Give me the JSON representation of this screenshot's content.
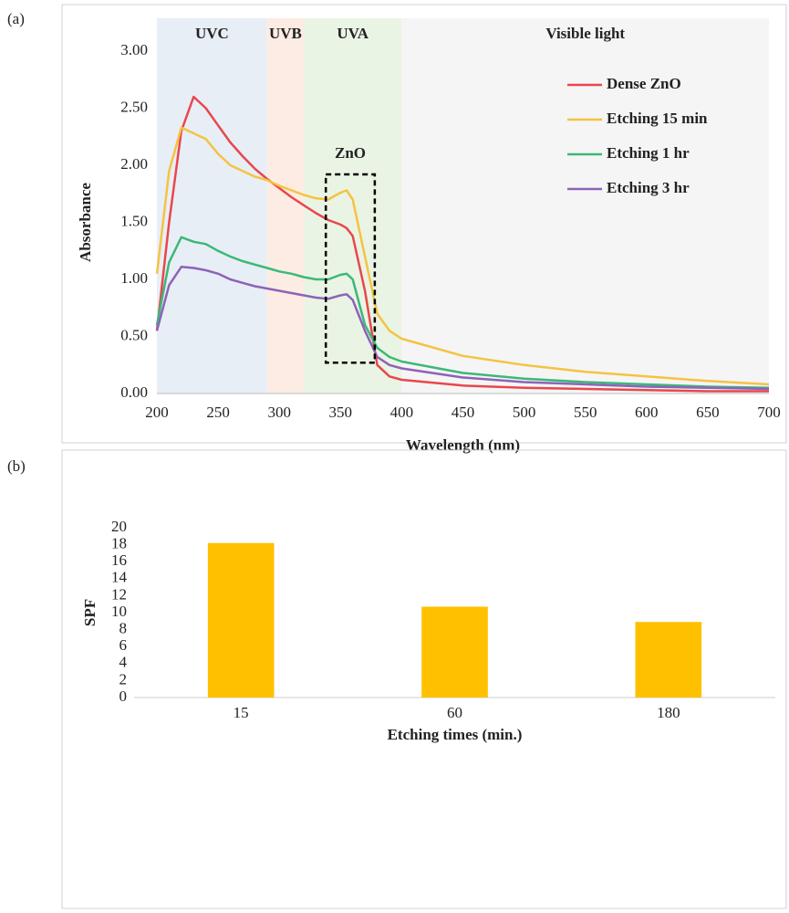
{
  "chart_data": [
    {
      "type": "line",
      "panel_label": "(a)",
      "xlabel": "Wavelength (nm)",
      "ylabel": "Absorbance",
      "x": [
        200,
        210,
        220,
        230,
        240,
        250,
        260,
        270,
        280,
        290,
        300,
        310,
        320,
        330,
        340,
        350,
        355,
        360,
        370,
        380,
        390,
        400,
        450,
        500,
        550,
        600,
        650,
        700
      ],
      "series": [
        {
          "name": "Dense ZnO",
          "color": "#e8474c",
          "values": [
            0.55,
            1.5,
            2.3,
            2.6,
            2.5,
            2.35,
            2.2,
            2.08,
            1.97,
            1.88,
            1.8,
            1.72,
            1.65,
            1.58,
            1.52,
            1.48,
            1.45,
            1.38,
            0.9,
            0.25,
            0.15,
            0.12,
            0.07,
            0.05,
            0.04,
            0.03,
            0.02,
            0.02
          ]
        },
        {
          "name": "Etching 15 min",
          "color": "#f5c342",
          "values": [
            1.05,
            1.95,
            2.33,
            2.28,
            2.23,
            2.1,
            2.0,
            1.95,
            1.9,
            1.87,
            1.82,
            1.78,
            1.74,
            1.71,
            1.7,
            1.76,
            1.78,
            1.7,
            1.2,
            0.7,
            0.55,
            0.48,
            0.33,
            0.25,
            0.19,
            0.15,
            0.11,
            0.08
          ]
        },
        {
          "name": "Etching 1 hr",
          "color": "#3cb878",
          "values": [
            0.6,
            1.15,
            1.37,
            1.33,
            1.31,
            1.25,
            1.2,
            1.16,
            1.13,
            1.1,
            1.07,
            1.05,
            1.02,
            1.0,
            1.0,
            1.04,
            1.05,
            1.0,
            0.6,
            0.4,
            0.32,
            0.28,
            0.18,
            0.13,
            0.1,
            0.08,
            0.06,
            0.05
          ]
        },
        {
          "name": "Etching 3 hr",
          "color": "#8e62b8",
          "values": [
            0.55,
            0.95,
            1.11,
            1.1,
            1.08,
            1.05,
            1.0,
            0.97,
            0.94,
            0.92,
            0.9,
            0.88,
            0.86,
            0.84,
            0.83,
            0.86,
            0.87,
            0.82,
            0.55,
            0.32,
            0.25,
            0.22,
            0.14,
            0.1,
            0.08,
            0.06,
            0.05,
            0.04
          ]
        }
      ],
      "xlim": [
        200,
        700
      ],
      "xticks": [
        200,
        250,
        300,
        350,
        400,
        450,
        500,
        550,
        600,
        650,
        700
      ],
      "ylim": [
        0,
        3
      ],
      "yticks": [
        {
          "value": 0,
          "label": "0.00"
        },
        {
          "value": 0.5,
          "label": "0.50"
        },
        {
          "value": 1,
          "label": "1.00"
        },
        {
          "value": 1.5,
          "label": "1.50"
        },
        {
          "value": 2,
          "label": "2.00"
        },
        {
          "value": 2.5,
          "label": "2.50"
        },
        {
          "value": 3,
          "label": "3.00"
        }
      ],
      "legend": "upper right",
      "regions": [
        {
          "label": "UVC",
          "start": 200,
          "end": 290,
          "color": "#2e75b6",
          "fill": "#e4ebf5"
        },
        {
          "label": "UVB",
          "start": 290,
          "end": 320,
          "color": "#ed7d31",
          "fill": "#fce9de"
        },
        {
          "label": "UVA",
          "start": 320,
          "end": 400,
          "color": "#70ad47",
          "fill": "#e6f2df"
        },
        {
          "label": "Visible light",
          "start": 400,
          "end": 700,
          "color": "#44546a",
          "fill": "#f3f3f3"
        }
      ],
      "annotation": {
        "text": "ZnO",
        "x": [
          338,
          378
        ],
        "y": [
          0.27,
          1.92
        ]
      }
    },
    {
      "type": "bar",
      "panel_label": "(b)",
      "xlabel": "Etching times (min.)",
      "ylabel": "SPF",
      "categories": [
        "15",
        "60",
        "180"
      ],
      "values": [
        18.2,
        10.7,
        8.9
      ],
      "color": "#ffc000",
      "ylim": [
        0,
        20
      ],
      "yticks": [
        0,
        2,
        4,
        6,
        8,
        10,
        12,
        14,
        16,
        18,
        20
      ]
    }
  ]
}
